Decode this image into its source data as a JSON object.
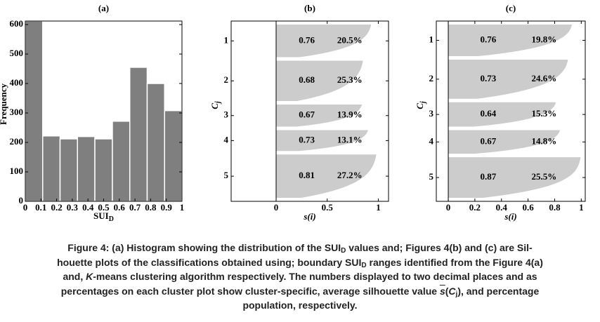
{
  "chart_data": [
    {
      "type": "histogram",
      "title": "(a)",
      "xlabel": "SUI",
      "xlabel_sub": "D",
      "ylabel": "Frequency",
      "bins": [
        0,
        0.111,
        0.222,
        0.333,
        0.444,
        0.556,
        0.667,
        0.778,
        0.889,
        1
      ],
      "values": [
        612,
        222,
        212,
        220,
        212,
        272,
        455,
        400,
        308
      ],
      "color": "#7f7f7f",
      "xlim": [
        0,
        1
      ],
      "xticks": [
        0,
        0.1,
        0.2,
        0.3,
        0.4,
        0.5,
        0.6,
        0.7,
        0.8,
        0.9,
        1
      ],
      "ylim": [
        0,
        612
      ],
      "yticks": [
        0,
        100,
        200,
        300,
        400,
        500,
        600
      ]
    },
    {
      "type": "silhouette",
      "title": "(b)",
      "xlabel": "s(i)",
      "ylabel": "C",
      "ylabel_sub": "j",
      "categories": [
        "1",
        "2",
        "3",
        "4",
        "5"
      ],
      "values": [
        0.76,
        0.68,
        0.67,
        0.73,
        0.81
      ],
      "percents": [
        20.5,
        25.3,
        13.9,
        13.1,
        27.2
      ],
      "percent_labels": [
        "20.5%",
        "25.3%",
        "13.9%",
        "13.1%",
        "27.2%"
      ],
      "color": "#cccccc",
      "xlim": [
        -0.44,
        1.1
      ],
      "xticks": [
        0,
        0.5,
        1
      ]
    },
    {
      "type": "silhouette",
      "title": "(c)",
      "xlabel": "s(i)",
      "ylabel": "C",
      "ylabel_sub": "j",
      "categories": [
        "1",
        "2",
        "3",
        "4",
        "5"
      ],
      "values": [
        0.76,
        0.73,
        0.64,
        0.67,
        0.87
      ],
      "percents": [
        19.8,
        24.6,
        15.3,
        14.8,
        25.5
      ],
      "percent_labels": [
        "19.8%",
        "24.6%",
        "15.3%",
        "14.8%",
        "25.5%"
      ],
      "color": "#cccccc",
      "xlim": [
        -0.09,
        1.03
      ],
      "xticks": [
        0,
        0.2,
        0.4,
        0.6,
        0.8,
        1
      ]
    }
  ],
  "caption": [
    "Figure 4: (a) Histogram showing the distribution of the SUI",
    "D",
    " values and; Figures 4(b) and (c) are Sil-",
    "houette plots of the classifications obtained using; boundary SUI",
    "D",
    " ranges identified from the Figure 4(a)",
    "and, ",
    "K",
    "-means clustering algorithm respectively. The numbers displayed to two decimal places and as",
    "percentages on each cluster plot show cluster-specific, average silhouette value ",
    "s",
    "(",
    "C",
    "j",
    "), and percentage",
    "population, respectively."
  ]
}
